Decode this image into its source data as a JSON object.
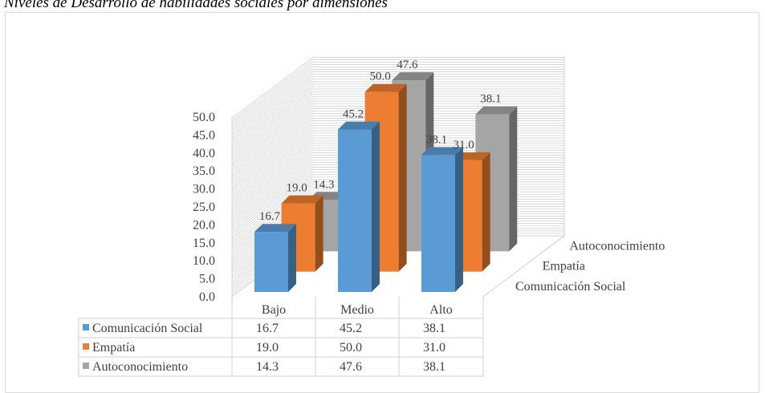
{
  "title": "Niveles de Desarrollo de habilidades sociales por dimensiones",
  "colors": {
    "comunicacion": "#5b9bd5",
    "empatia": "#ed7d31",
    "autoconocimiento": "#a5a5a5"
  },
  "chart_data": {
    "type": "bar",
    "subtype": "3d-column",
    "title": "Niveles de Desarrollo de habilidades sociales por dimensiones",
    "categories": [
      "Bajo",
      "Medio",
      "Alto"
    ],
    "series": [
      {
        "name": "Comunicación Social",
        "values": [
          16.7,
          45.2,
          38.1
        ]
      },
      {
        "name": "Empatía",
        "values": [
          19.0,
          50.0,
          31.0
        ]
      },
      {
        "name": "Autoconocimiento",
        "values": [
          14.3,
          47.6,
          38.1
        ]
      }
    ],
    "ylim": [
      0,
      50
    ],
    "yticks": [
      "0.0",
      "5.0",
      "10.0",
      "15.0",
      "20.0",
      "25.0",
      "30.0",
      "35.0",
      "40.0",
      "45.0",
      "50.0"
    ],
    "grid": true,
    "legend": "data-table"
  }
}
